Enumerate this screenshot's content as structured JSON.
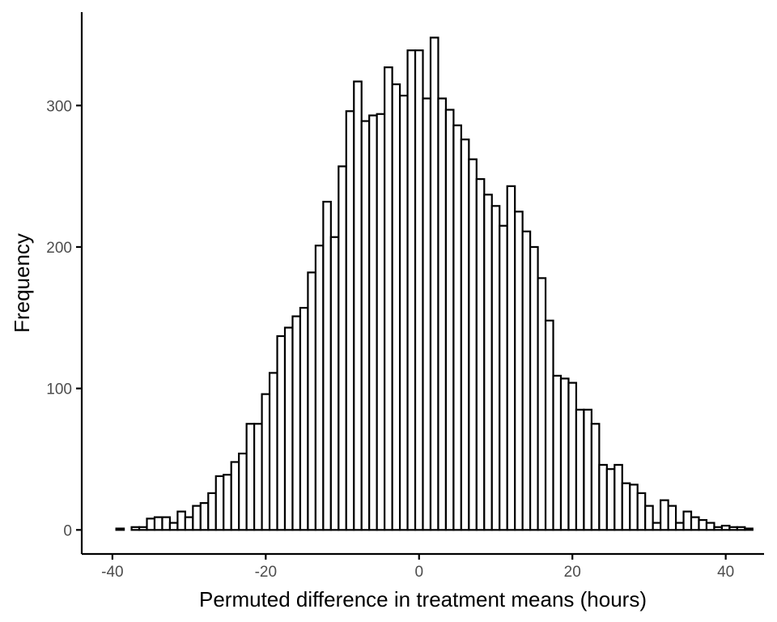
{
  "chart_data": {
    "type": "bar",
    "subtype": "histogram",
    "title": "",
    "xlabel": "Permuted difference in treatment means (hours)",
    "ylabel": "Frequency",
    "xlim": [
      -44,
      45
    ],
    "ylim": [
      -17,
      366
    ],
    "x_ticks": [
      -40,
      -20,
      0,
      20,
      40
    ],
    "x_tick_labels": [
      "-40",
      "-20",
      "0",
      "20",
      "40"
    ],
    "y_ticks": [
      0,
      100,
      200,
      300
    ],
    "y_tick_labels": [
      "0",
      "100",
      "200",
      "300"
    ],
    "bin_width": 1,
    "bin_start": -39.5,
    "values": [
      1,
      0,
      2,
      2,
      8,
      9,
      9,
      5,
      13,
      9,
      17,
      19,
      26,
      38,
      39,
      48,
      54,
      75,
      75,
      96,
      111,
      137,
      143,
      151,
      157,
      182,
      201,
      232,
      207,
      257,
      296,
      317,
      289,
      293,
      294,
      327,
      315,
      307,
      339,
      339,
      305,
      348,
      305,
      297,
      286,
      276,
      262,
      248,
      237,
      229,
      215,
      243,
      225,
      211,
      200,
      178,
      148,
      109,
      107,
      104,
      85,
      85,
      75,
      46,
      43,
      46,
      33,
      32,
      26,
      17,
      5,
      21,
      17,
      5,
      13,
      9,
      7,
      5,
      2,
      3,
      2,
      2,
      1
    ],
    "grid": false,
    "legend": "none",
    "colors": {
      "bar_fill": "#ffffff",
      "bar_stroke": "#000000",
      "axis": "#000000",
      "tick_label": "#4d4d4d"
    }
  }
}
